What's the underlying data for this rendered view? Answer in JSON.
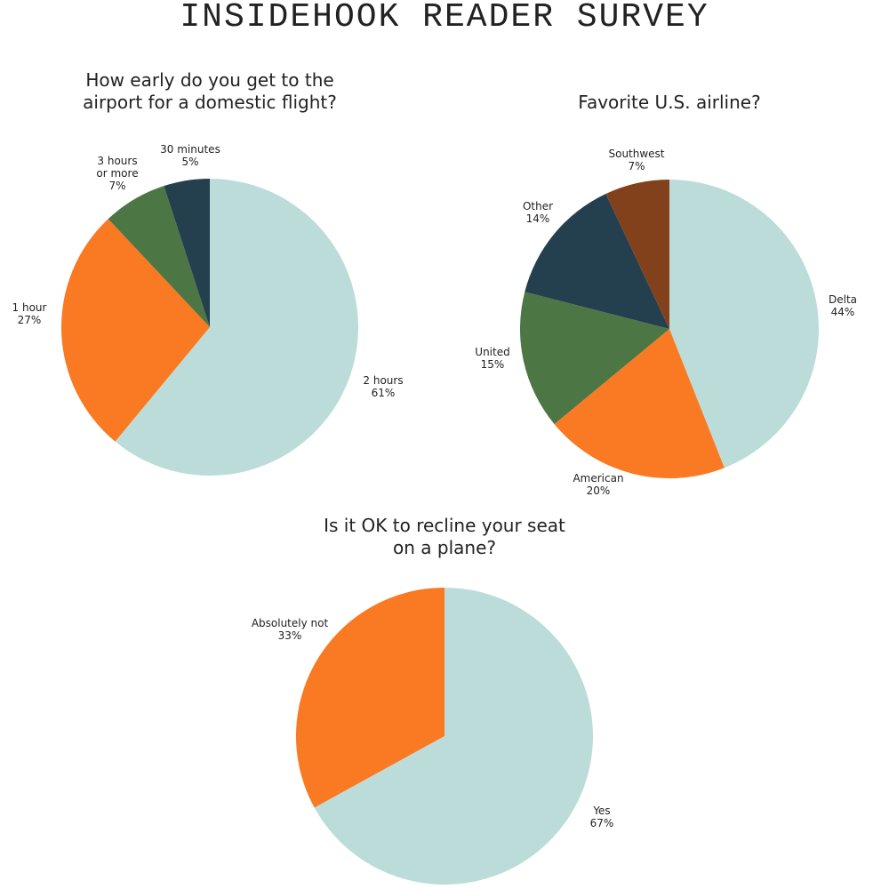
{
  "page": {
    "title": "INSIDEHOOK READER SURVEY"
  },
  "chart_data": [
    {
      "type": "pie",
      "title": "How early do you get to the airport for a domestic flight?",
      "title_lines": [
        "How early do you get to the",
        "airport for a domestic flight?"
      ],
      "start": "12 o'clock",
      "direction": "clockwise",
      "slices": [
        {
          "label": "2 hours",
          "label_lines": [
            "2 hours"
          ],
          "value": 61,
          "display": "61%",
          "color": "#bcdcda"
        },
        {
          "label": "1 hour",
          "label_lines": [
            "1 hour"
          ],
          "value": 27,
          "display": "27%",
          "color": "#f97a22"
        },
        {
          "label": "3 hours or more",
          "label_lines": [
            "3 hours",
            "or more"
          ],
          "value": 7,
          "display": "7%",
          "color": "#4d7645"
        },
        {
          "label": "30 minutes",
          "label_lines": [
            "30 minutes"
          ],
          "value": 5,
          "display": "5%",
          "color": "#243f4d"
        }
      ]
    },
    {
      "type": "pie",
      "title": "Favorite U.S. airline?",
      "title_lines": [
        "Favorite U.S. airline?"
      ],
      "start": "12 o'clock",
      "direction": "clockwise",
      "slices": [
        {
          "label": "Delta",
          "label_lines": [
            "Delta"
          ],
          "value": 44,
          "display": "44%",
          "color": "#bcdcda"
        },
        {
          "label": "American",
          "label_lines": [
            "American"
          ],
          "value": 20,
          "display": "20%",
          "color": "#f97a22"
        },
        {
          "label": "United",
          "label_lines": [
            "United"
          ],
          "value": 15,
          "display": "15%",
          "color": "#4d7645"
        },
        {
          "label": "Other",
          "label_lines": [
            "Other"
          ],
          "value": 14,
          "display": "14%",
          "color": "#243f4d"
        },
        {
          "label": "Southwest",
          "label_lines": [
            "Southwest"
          ],
          "value": 7,
          "display": "7%",
          "color": "#82411b"
        }
      ]
    },
    {
      "type": "pie",
      "title": "Is it OK to recline your seat on a plane?",
      "title_lines": [
        "Is it OK to recline your seat",
        "on a plane?"
      ],
      "start": "12 o'clock",
      "direction": "clockwise",
      "slices": [
        {
          "label": "Yes",
          "label_lines": [
            "Yes"
          ],
          "value": 67,
          "display": "67%",
          "color": "#bcdcda"
        },
        {
          "label": "Absolutely not",
          "label_lines": [
            "Absolutely not"
          ],
          "value": 33,
          "display": "33%",
          "color": "#f97a22"
        }
      ]
    }
  ]
}
